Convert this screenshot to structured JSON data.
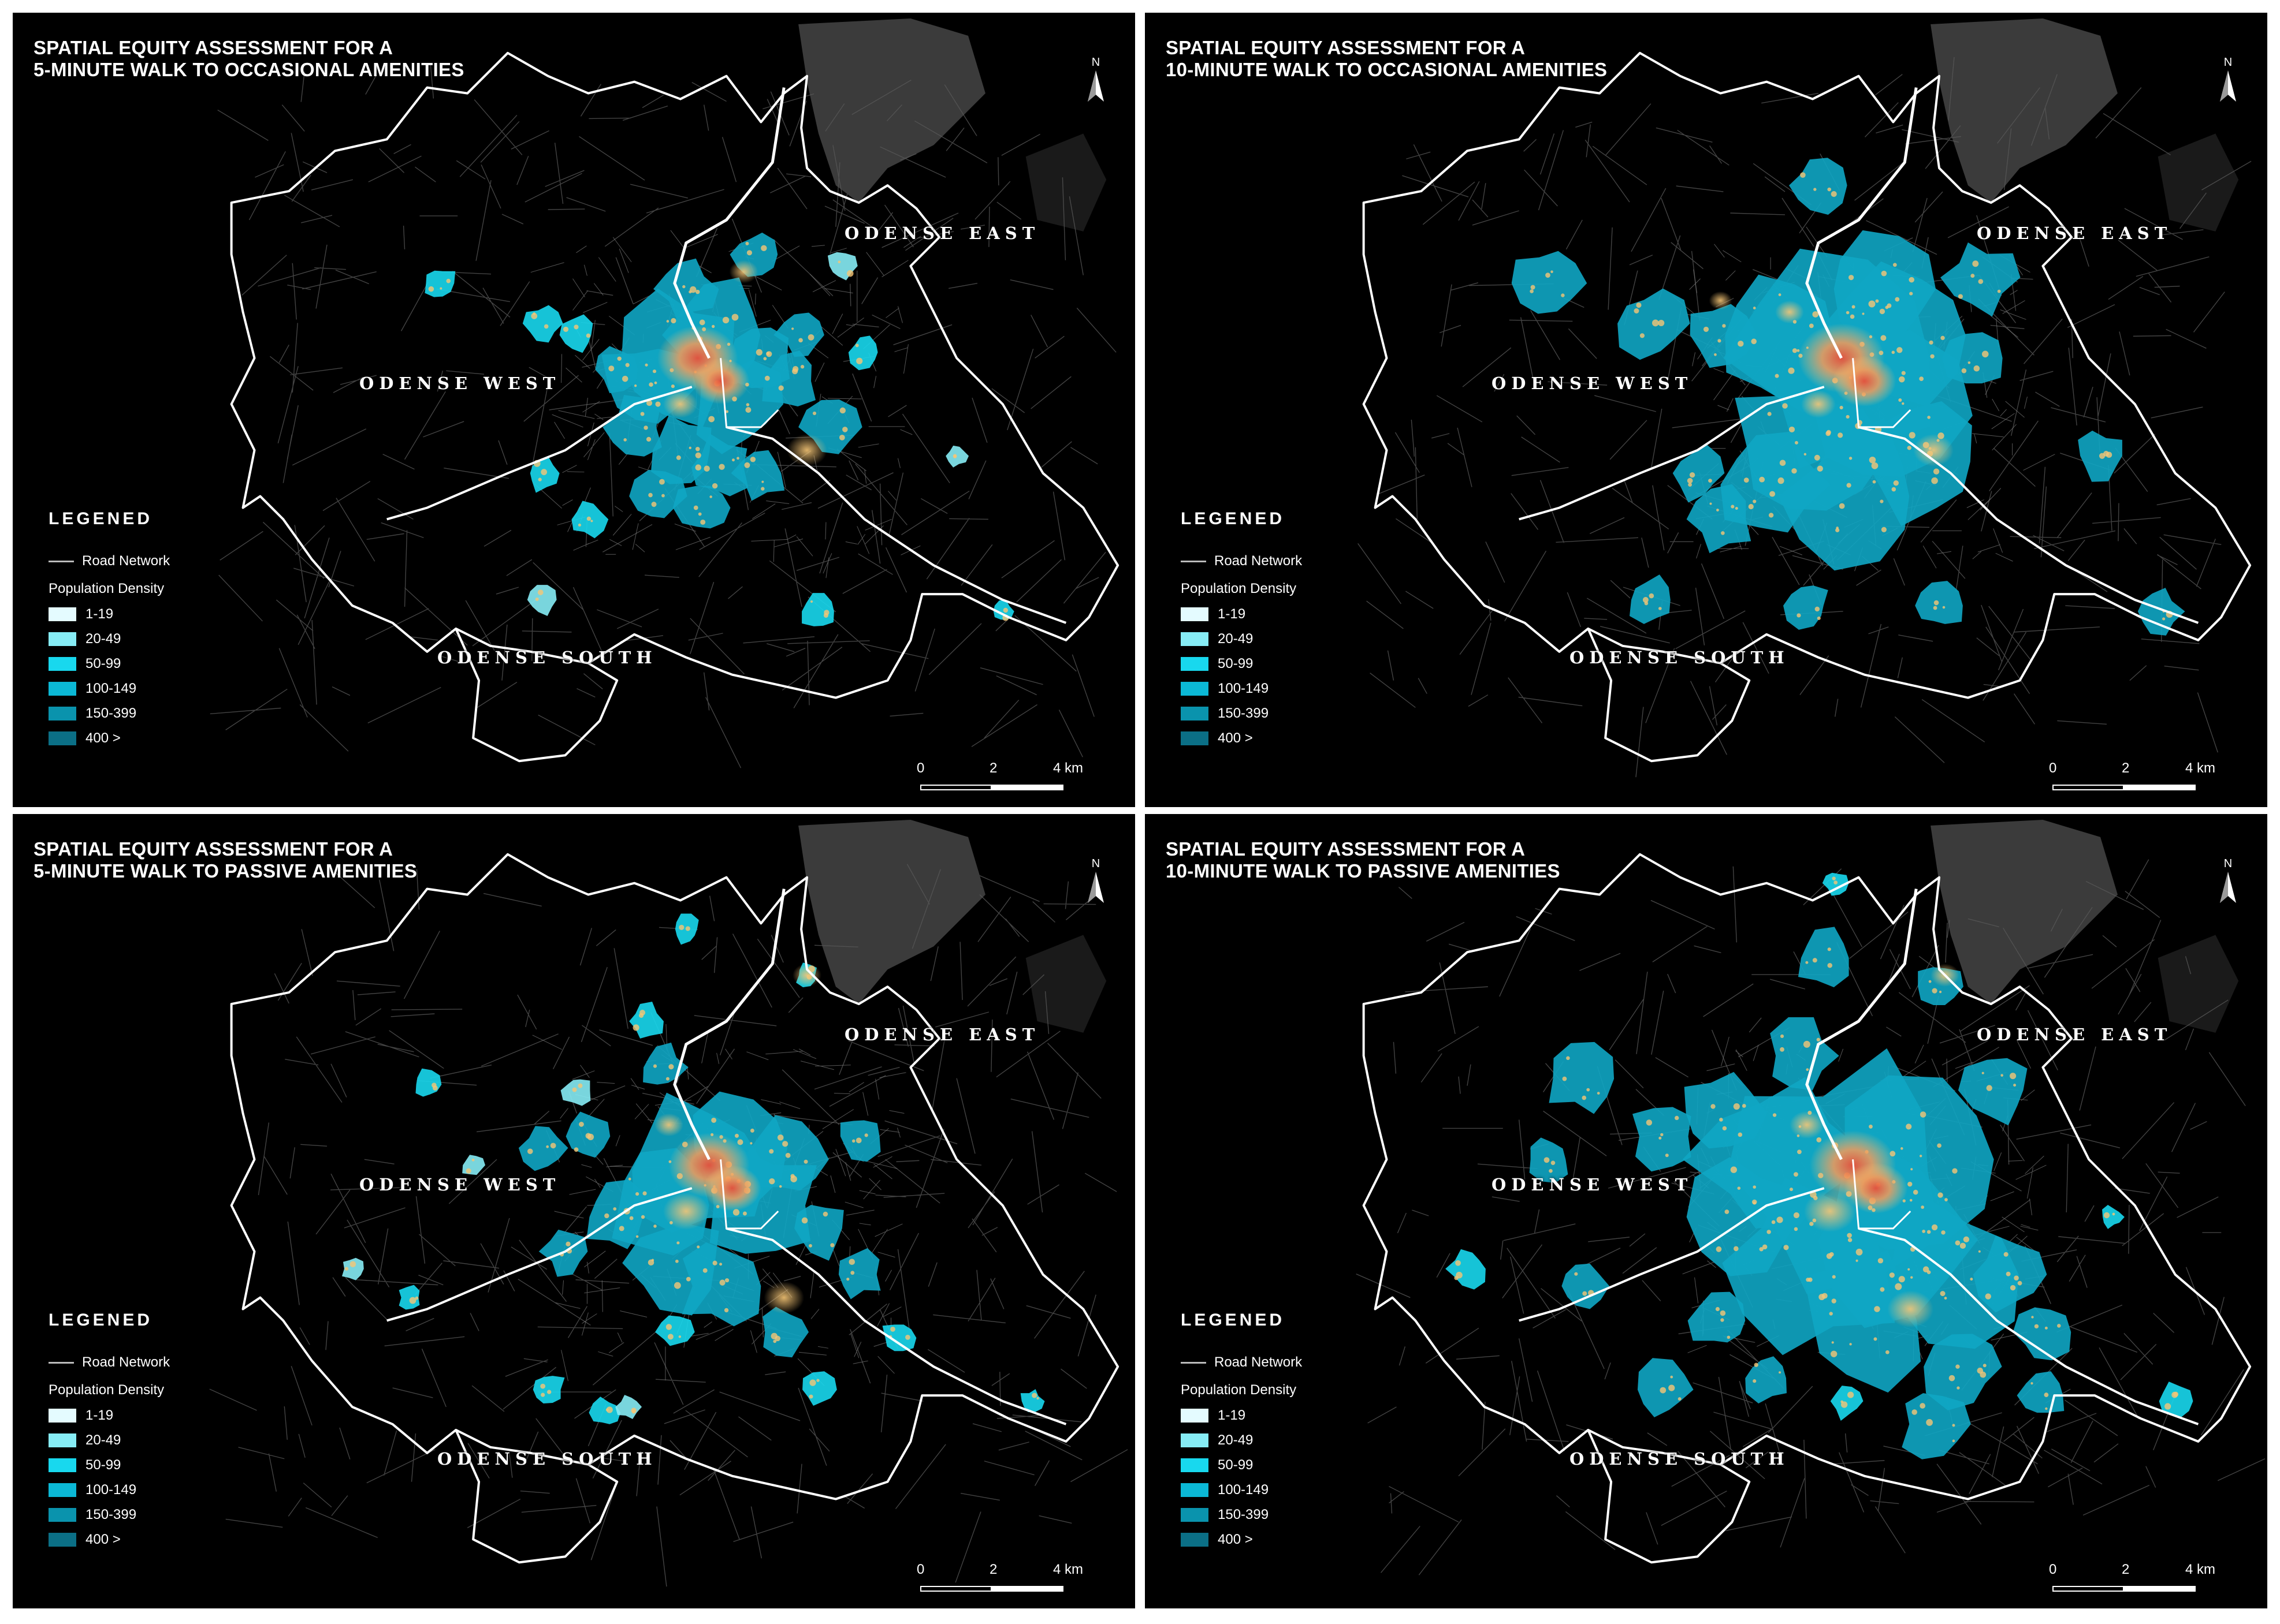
{
  "panels": [
    {
      "title_line1": "SPATIAL EQUITY ASSESSMENT FOR A",
      "title_line2": "5-MINUTE WALK TO OCCASIONAL AMENITIES",
      "walk_minutes": 5,
      "amenity_type": "occasional"
    },
    {
      "title_line1": "SPATIAL EQUITY ASSESSMENT FOR A",
      "title_line2": "10-MINUTE WALK TO OCCASIONAL AMENITIES",
      "walk_minutes": 10,
      "amenity_type": "occasional"
    },
    {
      "title_line1": "SPATIAL EQUITY ASSESSMENT FOR A",
      "title_line2": "5-MINUTE WALK TO PASSIVE AMENITIES",
      "walk_minutes": 5,
      "amenity_type": "passive"
    },
    {
      "title_line1": "SPATIAL EQUITY ASSESSMENT FOR A",
      "title_line2": "10-MINUTE WALK TO PASSIVE AMENITIES",
      "walk_minutes": 10,
      "amenity_type": "passive"
    }
  ],
  "districts": {
    "east": "ODENSE EAST",
    "west": "ODENSE WEST",
    "south": "ODENSE SOUTH"
  },
  "north_label": "N",
  "legend": {
    "heading": "LEGENED",
    "road_label": "Road Network",
    "population_title": "Population Density",
    "classes": [
      {
        "label": "1-19",
        "color": "#e4fbff"
      },
      {
        "label": "20-49",
        "color": "#86ecf5"
      },
      {
        "label": "50-99",
        "color": "#18d8ee"
      },
      {
        "label": "100-149",
        "color": "#0bb8d6"
      },
      {
        "label": "150-399",
        "color": "#0a93ad"
      },
      {
        "label": "400 >",
        "color": "#0b6f86"
      }
    ]
  },
  "scale_bar": {
    "ticks": [
      "0",
      "2",
      "4 km"
    ]
  },
  "colors": {
    "background": "#000000",
    "boundary": "#ffffff",
    "road": "#5a5a5a",
    "coverage": "#0fa6c4",
    "hotspot_low": "#f6c676",
    "hotspot_high": "#e8503a",
    "water": "#3a3a3a"
  }
}
